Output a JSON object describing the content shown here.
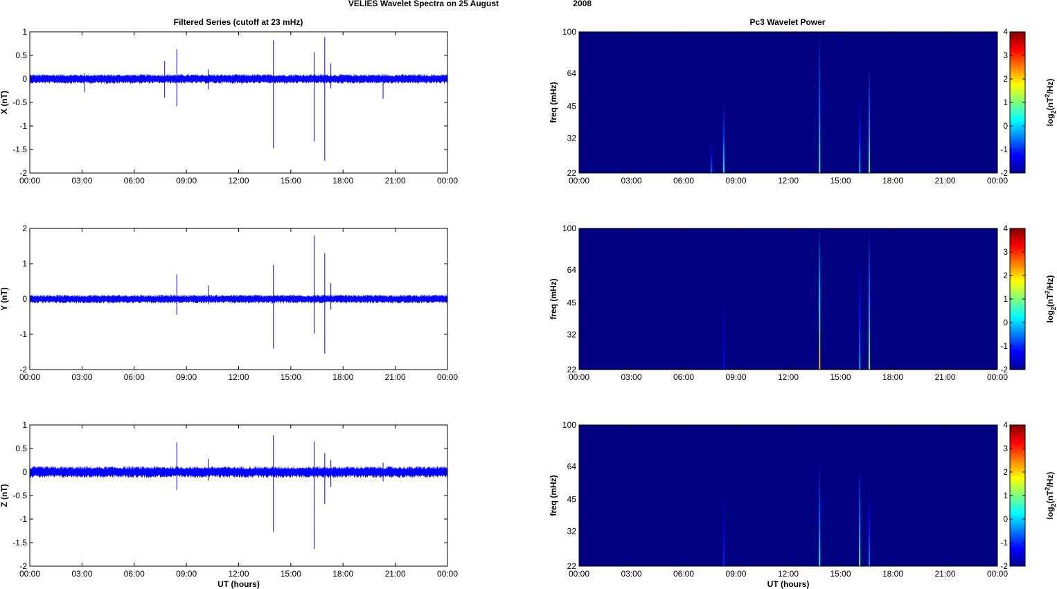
{
  "figure": {
    "title_left": "VELIES Wavelet Spectra on 25 August",
    "title_year": "2008",
    "left_column_title": "Filtered Series (cutoff at 23 mHz)",
    "right_column_title": "Pc3 Wavelet Power",
    "x_label": "UT (hours)",
    "colorbar_label": "log",
    "colorbar_label_sub": "2",
    "colorbar_label_unit": "(nT",
    "colorbar_label_sup": "2",
    "colorbar_label_tail": "/Hz)"
  },
  "chart_data": [
    {
      "type": "line",
      "title": "Filtered Series (cutoff at 23 mHz)",
      "ylabel": "X (nT)",
      "xlabel": "",
      "x_ticks": [
        "00:00",
        "03:00",
        "06:00",
        "09:00",
        "12:00",
        "15:00",
        "18:00",
        "21:00",
        "00:00"
      ],
      "y_ticks": [
        "1",
        "0.5",
        "0",
        "-0.5",
        "-1",
        "-1.5",
        "-2"
      ],
      "ylim": [
        -2,
        1
      ],
      "xlim_hours": [
        0,
        24
      ],
      "color": "#0000ff",
      "noise_band": 0.1,
      "spikes": [
        {
          "t": 3.15,
          "min": -0.28,
          "max": 0.12
        },
        {
          "t": 7.75,
          "min": -0.4,
          "max": 0.38
        },
        {
          "t": 8.45,
          "min": -0.58,
          "max": 0.63
        },
        {
          "t": 10.25,
          "min": -0.22,
          "max": 0.2
        },
        {
          "t": 14.0,
          "min": -1.47,
          "max": 0.82
        },
        {
          "t": 16.35,
          "min": -1.33,
          "max": 0.57
        },
        {
          "t": 16.95,
          "min": -1.74,
          "max": 0.89
        },
        {
          "t": 17.3,
          "min": -0.2,
          "max": 0.33
        },
        {
          "t": 20.3,
          "min": -0.42,
          "max": 0.1
        }
      ]
    },
    {
      "type": "line",
      "title": "",
      "ylabel": "Y (nT)",
      "xlabel": "",
      "x_ticks": [
        "00:00",
        "03:00",
        "06:00",
        "09:00",
        "12:00",
        "15:00",
        "18:00",
        "21:00",
        "00:00"
      ],
      "y_ticks": [
        "2",
        "1",
        "0",
        "-1",
        "-2"
      ],
      "ylim": [
        -2,
        2
      ],
      "xlim_hours": [
        0,
        24
      ],
      "color": "#0000ff",
      "noise_band": 0.12,
      "spikes": [
        {
          "t": 8.45,
          "min": -0.45,
          "max": 0.7
        },
        {
          "t": 10.25,
          "min": -0.15,
          "max": 0.38
        },
        {
          "t": 14.0,
          "min": -1.4,
          "max": 0.96
        },
        {
          "t": 16.35,
          "min": -0.98,
          "max": 1.8
        },
        {
          "t": 16.95,
          "min": -1.55,
          "max": 1.3
        },
        {
          "t": 17.3,
          "min": -0.3,
          "max": 0.45
        }
      ]
    },
    {
      "type": "line",
      "title": "",
      "ylabel": "Z (nT)",
      "xlabel": "UT (hours)",
      "x_ticks": [
        "00:00",
        "03:00",
        "06:00",
        "09:00",
        "12:00",
        "15:00",
        "18:00",
        "21:00",
        "00:00"
      ],
      "y_ticks": [
        "1",
        "0.5",
        "0",
        "-0.5",
        "-1",
        "-1.5",
        "-2"
      ],
      "ylim": [
        -2,
        1
      ],
      "xlim_hours": [
        0,
        24
      ],
      "color": "#0000ff",
      "noise_band": 0.12,
      "spikes": [
        {
          "t": 8.45,
          "min": -0.38,
          "max": 0.63
        },
        {
          "t": 10.25,
          "min": -0.18,
          "max": 0.28
        },
        {
          "t": 14.0,
          "min": -1.27,
          "max": 0.78
        },
        {
          "t": 16.35,
          "min": -1.63,
          "max": 0.65
        },
        {
          "t": 16.95,
          "min": -0.68,
          "max": 0.4
        },
        {
          "t": 17.3,
          "min": -0.32,
          "max": 0.26
        },
        {
          "t": 20.3,
          "min": -0.2,
          "max": 0.2
        }
      ]
    },
    {
      "type": "heatmap",
      "title": "Pc3 Wavelet Power",
      "ylabel": "freq (mHz)",
      "xlabel": "",
      "x_ticks": [
        "00:00",
        "03:00",
        "06:00",
        "09:00",
        "12:00",
        "15:00",
        "18:00",
        "21:00",
        "00:00"
      ],
      "y_ticks": [
        100,
        64,
        45,
        32,
        22
      ],
      "y_scale": "log",
      "ylim": [
        22,
        100
      ],
      "colorbar_ticks": [
        "4",
        "3",
        "2",
        "1",
        "0",
        "-1",
        "-2"
      ],
      "clim": [
        -2,
        4
      ],
      "background_value": -2,
      "streaks": [
        {
          "t": 7.6,
          "f_top": 32,
          "peak": -0.5
        },
        {
          "t": 8.3,
          "f_top": 47,
          "peak": 0.3
        },
        {
          "t": 13.8,
          "f_top": 100,
          "peak": 0.6
        },
        {
          "t": 16.1,
          "f_top": 48,
          "peak": -0.2
        },
        {
          "t": 16.65,
          "f_top": 70,
          "peak": 0.8
        }
      ]
    },
    {
      "type": "heatmap",
      "title": "",
      "ylabel": "freq (mHz)",
      "xlabel": "",
      "x_ticks": [
        "00:00",
        "03:00",
        "06:00",
        "09:00",
        "12:00",
        "15:00",
        "18:00",
        "21:00",
        "00:00"
      ],
      "y_ticks": [
        100,
        64,
        45,
        32,
        22
      ],
      "y_scale": "log",
      "ylim": [
        22,
        100
      ],
      "colorbar_ticks": [
        "4",
        "3",
        "2",
        "1",
        "0",
        "-1",
        "-2"
      ],
      "clim": [
        -2,
        4
      ],
      "background_value": -2,
      "streaks": [
        {
          "t": 8.3,
          "f_top": 52,
          "peak": -1.2
        },
        {
          "t": 13.8,
          "f_top": 100,
          "peak": 2.2
        },
        {
          "t": 16.1,
          "f_top": 70,
          "peak": -0.3
        },
        {
          "t": 16.65,
          "f_top": 96,
          "peak": 1.0
        }
      ]
    },
    {
      "type": "heatmap",
      "title": "",
      "ylabel": "freq (mHz)",
      "xlabel": "UT (hours)",
      "x_ticks": [
        "00:00",
        "03:00",
        "06:00",
        "09:00",
        "12:00",
        "15:00",
        "18:00",
        "21:00",
        "00:00"
      ],
      "y_ticks": [
        100,
        64,
        45,
        32,
        22
      ],
      "y_scale": "log",
      "ylim": [
        22,
        100
      ],
      "colorbar_ticks": [
        "4",
        "3",
        "2",
        "1",
        "0",
        "-1",
        "-2"
      ],
      "clim": [
        -2,
        4
      ],
      "background_value": -2,
      "streaks": [
        {
          "t": 8.3,
          "f_top": 50,
          "peak": -1.0
        },
        {
          "t": 13.8,
          "f_top": 66,
          "peak": 0.5
        },
        {
          "t": 16.1,
          "f_top": 62,
          "peak": 0.9
        },
        {
          "t": 16.65,
          "f_top": 52,
          "peak": -0.4
        }
      ]
    }
  ]
}
